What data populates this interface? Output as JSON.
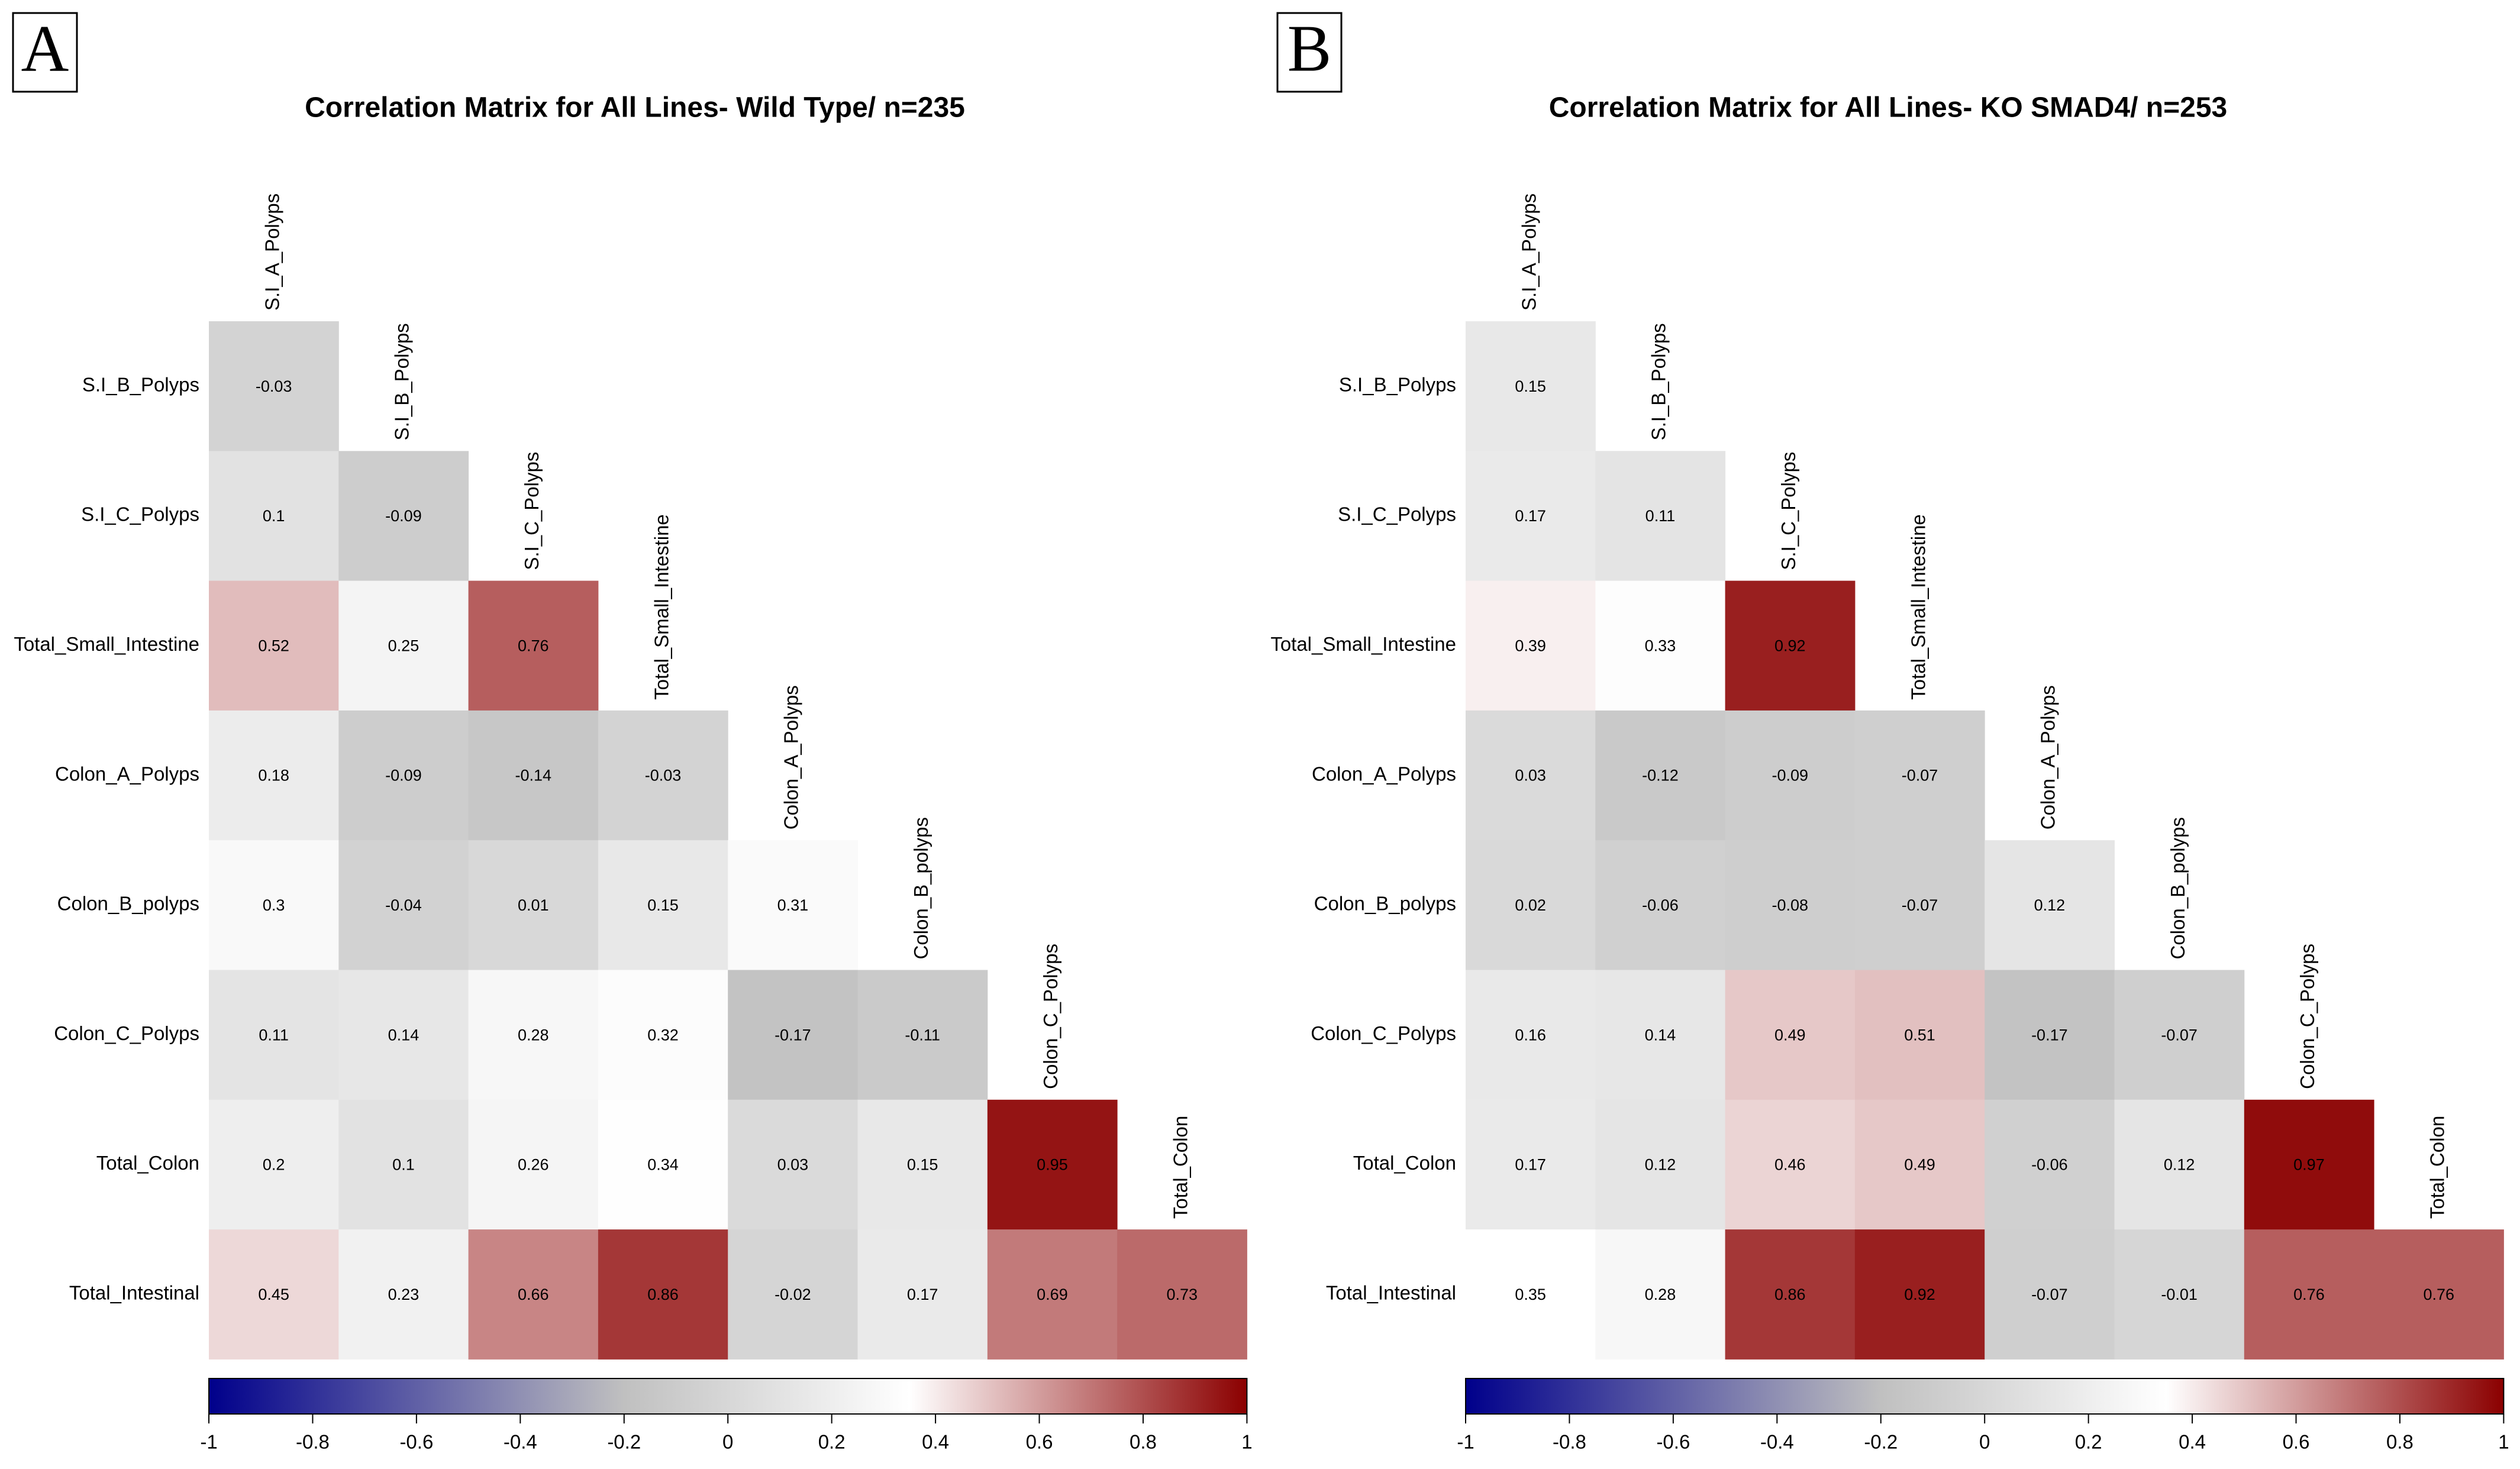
{
  "chart_data": [
    {
      "type": "heatmap",
      "panel": "A",
      "title": "Correlation Matrix for All Lines- Wild Type/ n=235",
      "columns": [
        "S.I_A_Polyps",
        "S.I_B_Polyps",
        "S.I_C_Polyps",
        "Total_Small_Intestine",
        "Colon_A_Polyps",
        "Colon_B_polyps",
        "Colon_C_Polyps",
        "Total_Colon"
      ],
      "rows": [
        "S.I_B_Polyps",
        "S.I_C_Polyps",
        "Total_Small_Intestine",
        "Colon_A_Polyps",
        "Colon_B_polyps",
        "Colon_C_Polyps",
        "Total_Colon",
        "Total_Intestinal"
      ],
      "values": [
        [
          -0.03
        ],
        [
          0.1,
          -0.09
        ],
        [
          0.52,
          0.25,
          0.76
        ],
        [
          0.18,
          -0.09,
          -0.14,
          -0.03
        ],
        [
          0.3,
          -0.04,
          0.01,
          0.15,
          0.31
        ],
        [
          0.11,
          0.14,
          0.28,
          0.32,
          -0.17,
          -0.11
        ],
        [
          0.2,
          0.1,
          0.26,
          0.34,
          0.03,
          0.15,
          0.95
        ],
        [
          0.45,
          0.23,
          0.66,
          0.86,
          -0.02,
          0.17,
          0.69,
          0.73
        ]
      ],
      "color_stops": [
        {
          "value": -1,
          "color": "#00008B"
        },
        {
          "value": -0.2,
          "color": "#C0C0C0"
        },
        {
          "value": 0.35,
          "color": "#FFFFFF"
        },
        {
          "value": 1,
          "color": "#8B0000"
        }
      ],
      "clim": [
        -1,
        1
      ],
      "cticks": [
        -1,
        -0.8,
        -0.6,
        -0.4,
        -0.2,
        0,
        0.2,
        0.4,
        0.6,
        0.8,
        1
      ]
    },
    {
      "type": "heatmap",
      "panel": "B",
      "title": "Correlation Matrix for All Lines- KO SMAD4/ n=253",
      "columns": [
        "S.I_A_Polyps",
        "S.I_B_Polyps",
        "S.I_C_Polyps",
        "Total_Small_Intestine",
        "Colon_A_Polyps",
        "Colon_B_polyps",
        "Colon_C_Polyps",
        "Total_Colon"
      ],
      "rows": [
        "S.I_B_Polyps",
        "S.I_C_Polyps",
        "Total_Small_Intestine",
        "Colon_A_Polyps",
        "Colon_B_polyps",
        "Colon_C_Polyps",
        "Total_Colon",
        "Total_Intestinal"
      ],
      "values": [
        [
          0.15
        ],
        [
          0.17,
          0.11
        ],
        [
          0.39,
          0.33,
          0.92
        ],
        [
          0.03,
          -0.12,
          -0.09,
          -0.07
        ],
        [
          0.02,
          -0.06,
          -0.08,
          -0.07,
          0.12
        ],
        [
          0.16,
          0.14,
          0.49,
          0.51,
          -0.17,
          -0.07
        ],
        [
          0.17,
          0.12,
          0.46,
          0.49,
          -0.06,
          0.12,
          0.97
        ],
        [
          0.35,
          0.28,
          0.86,
          0.92,
          -0.07,
          -0.01,
          0.76,
          0.76
        ]
      ],
      "color_stops": [
        {
          "value": -1,
          "color": "#00008B"
        },
        {
          "value": -0.2,
          "color": "#C0C0C0"
        },
        {
          "value": 0.35,
          "color": "#FFFFFF"
        },
        {
          "value": 1,
          "color": "#8B0000"
        }
      ],
      "clim": [
        -1,
        1
      ],
      "cticks": [
        -1,
        -0.8,
        -0.6,
        -0.4,
        -0.2,
        0,
        0.2,
        0.4,
        0.6,
        0.8,
        1
      ]
    }
  ]
}
